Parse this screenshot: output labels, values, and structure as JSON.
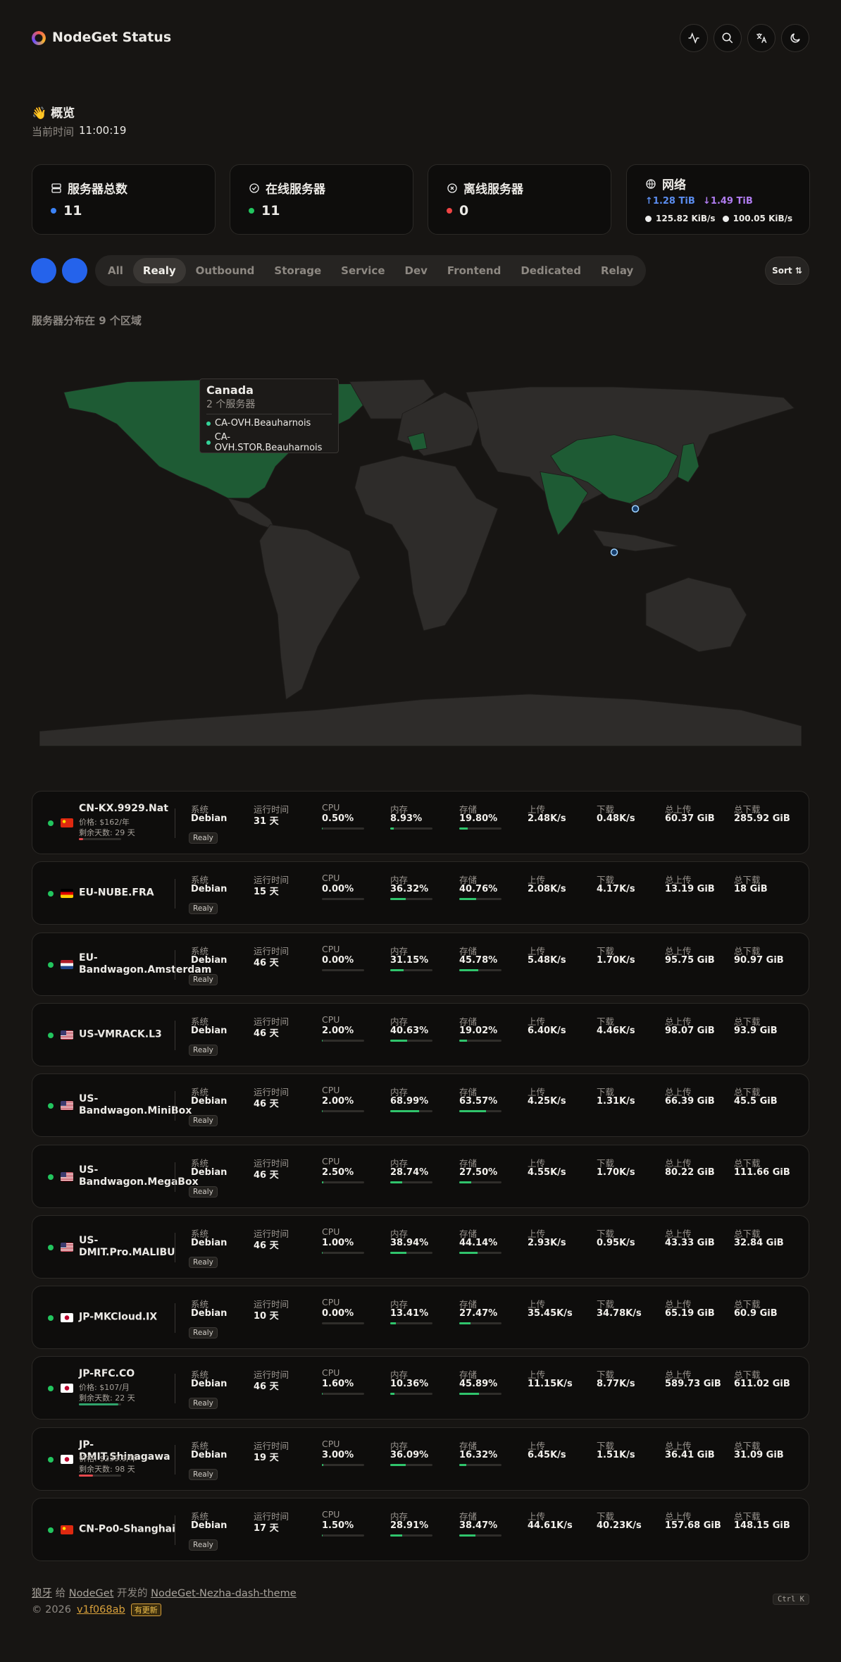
{
  "header": {
    "title": "NodeGet Status"
  },
  "overview": {
    "title": "👋 概览",
    "time_label": "当前时间",
    "time": "11:00:19"
  },
  "stats": [
    {
      "label": "服务器总数",
      "value": "11"
    },
    {
      "label": "在线服务器",
      "value": "11"
    },
    {
      "label": "离线服务器",
      "value": "0"
    }
  ],
  "network": {
    "label": "网络",
    "upload_total": "↑1.28 TiB",
    "download_total": "↓1.49 TiB",
    "upload_speed": "125.82 KiB/s",
    "download_speed": "100.05 KiB/s"
  },
  "filters": {
    "tabs": [
      "All",
      "Realy",
      "Outbound",
      "Storage",
      "Service",
      "Dev",
      "Frontend",
      "Dedicated",
      "Relay"
    ],
    "active": 1,
    "sort": "Sort"
  },
  "map": {
    "summary": "服务器分布在 9 个区域",
    "tooltip": {
      "title": "Canada",
      "count": "2 个服务器",
      "items": [
        "CA-OVH.Beauharnois",
        "CA-OVH.STOR.Beauharnois"
      ]
    }
  },
  "servers": {
    "columns": {
      "os": "系统",
      "uptime": "运行时间",
      "cpu": "CPU",
      "mem": "内存",
      "disk": "存储",
      "up": "上传",
      "down": "下载",
      "total_up": "总上传",
      "total_down": "总下载"
    },
    "rows": [
      {
        "name": "CN-KX.9929.Nat",
        "price": "价格: $162/年",
        "remaining": "剩余天数: 29 天",
        "os": "Debian",
        "uptime": "31 天",
        "cpu": "0.50%",
        "mem": "8.93%",
        "disk": "19.80%",
        "up": "2.48K/s",
        "down": "0.48K/s",
        "total_up": "60.37 GiB",
        "total_down": "285.92 GiB",
        "tag": "Realy"
      },
      {
        "name": "EU-NUBE.FRA",
        "os": "Debian",
        "uptime": "15 天",
        "cpu": "0.00%",
        "mem": "36.32%",
        "disk": "40.76%",
        "up": "2.08K/s",
        "down": "4.17K/s",
        "total_up": "13.19 GiB",
        "total_down": "18 GiB",
        "tag": "Realy"
      },
      {
        "name": "EU-Bandwagon.Amsterdam",
        "os": "Debian",
        "uptime": "46 天",
        "cpu": "0.00%",
        "mem": "31.15%",
        "disk": "45.78%",
        "up": "5.48K/s",
        "down": "1.70K/s",
        "total_up": "95.75 GiB",
        "total_down": "90.97 GiB",
        "tag": "Realy"
      },
      {
        "name": "US-VMRACK.L3",
        "os": "Debian",
        "uptime": "46 天",
        "cpu": "2.00%",
        "mem": "40.63%",
        "disk": "19.02%",
        "up": "6.40K/s",
        "down": "4.46K/s",
        "total_up": "98.07 GiB",
        "total_down": "93.9 GiB",
        "tag": "Realy"
      },
      {
        "name": "US-Bandwagon.MiniBox",
        "os": "Debian",
        "uptime": "46 天",
        "cpu": "2.00%",
        "mem": "68.99%",
        "disk": "63.57%",
        "up": "4.25K/s",
        "down": "1.31K/s",
        "total_up": "66.39 GiB",
        "total_down": "45.5 GiB",
        "tag": "Realy"
      },
      {
        "name": "US-Bandwagon.MegaBox",
        "os": "Debian",
        "uptime": "46 天",
        "cpu": "2.50%",
        "mem": "28.74%",
        "disk": "27.50%",
        "up": "4.55K/s",
        "down": "1.70K/s",
        "total_up": "80.22 GiB",
        "total_down": "111.66 GiB",
        "tag": "Realy"
      },
      {
        "name": "US-DMIT.Pro.MALIBU",
        "os": "Debian",
        "uptime": "46 天",
        "cpu": "1.00%",
        "mem": "38.94%",
        "disk": "44.14%",
        "up": "2.93K/s",
        "down": "0.95K/s",
        "total_up": "43.33 GiB",
        "total_down": "32.84 GiB",
        "tag": "Realy"
      },
      {
        "name": "JP-MKCloud.IX",
        "os": "Debian",
        "uptime": "10 天",
        "cpu": "0.00%",
        "mem": "13.41%",
        "disk": "27.47%",
        "up": "35.45K/s",
        "down": "34.78K/s",
        "total_up": "65.19 GiB",
        "total_down": "60.9 GiB",
        "tag": "Realy"
      },
      {
        "name": "JP-RFC.CO",
        "price": "价格: $107/月",
        "remaining": "剩余天数: 22 天",
        "os": "Debian",
        "uptime": "46 天",
        "cpu": "1.60%",
        "mem": "10.36%",
        "disk": "45.89%",
        "up": "11.15K/s",
        "down": "8.77K/s",
        "total_up": "589.73 GiB",
        "total_down": "611.02 GiB",
        "tag": "Realy"
      },
      {
        "name": "JP-DMIT.Shinagawa",
        "price": "价格: $239.9/年",
        "remaining": "剩余天数: 98 天",
        "os": "Debian",
        "uptime": "19 天",
        "cpu": "3.00%",
        "mem": "36.09%",
        "disk": "16.32%",
        "up": "6.45K/s",
        "down": "1.51K/s",
        "total_up": "36.41 GiB",
        "total_down": "31.09 GiB",
        "tag": "Realy"
      },
      {
        "name": "CN-Po0-Shanghai",
        "os": "Debian",
        "uptime": "17 天",
        "cpu": "1.50%",
        "mem": "28.91%",
        "disk": "38.47%",
        "up": "44.61K/s",
        "down": "40.23K/s",
        "total_up": "157.68 GiB",
        "total_down": "148.15 GiB",
        "tag": "Realy"
      }
    ]
  },
  "footer": {
    "author": "狼牙",
    "for": "给",
    "project": "NodeGet",
    "made": "开发的",
    "theme": "NodeGet-Nezha-dash-theme",
    "copyright": "© 2026",
    "version": "v1f068ab",
    "update": "有更新",
    "shortcut": "Ctrl K"
  }
}
